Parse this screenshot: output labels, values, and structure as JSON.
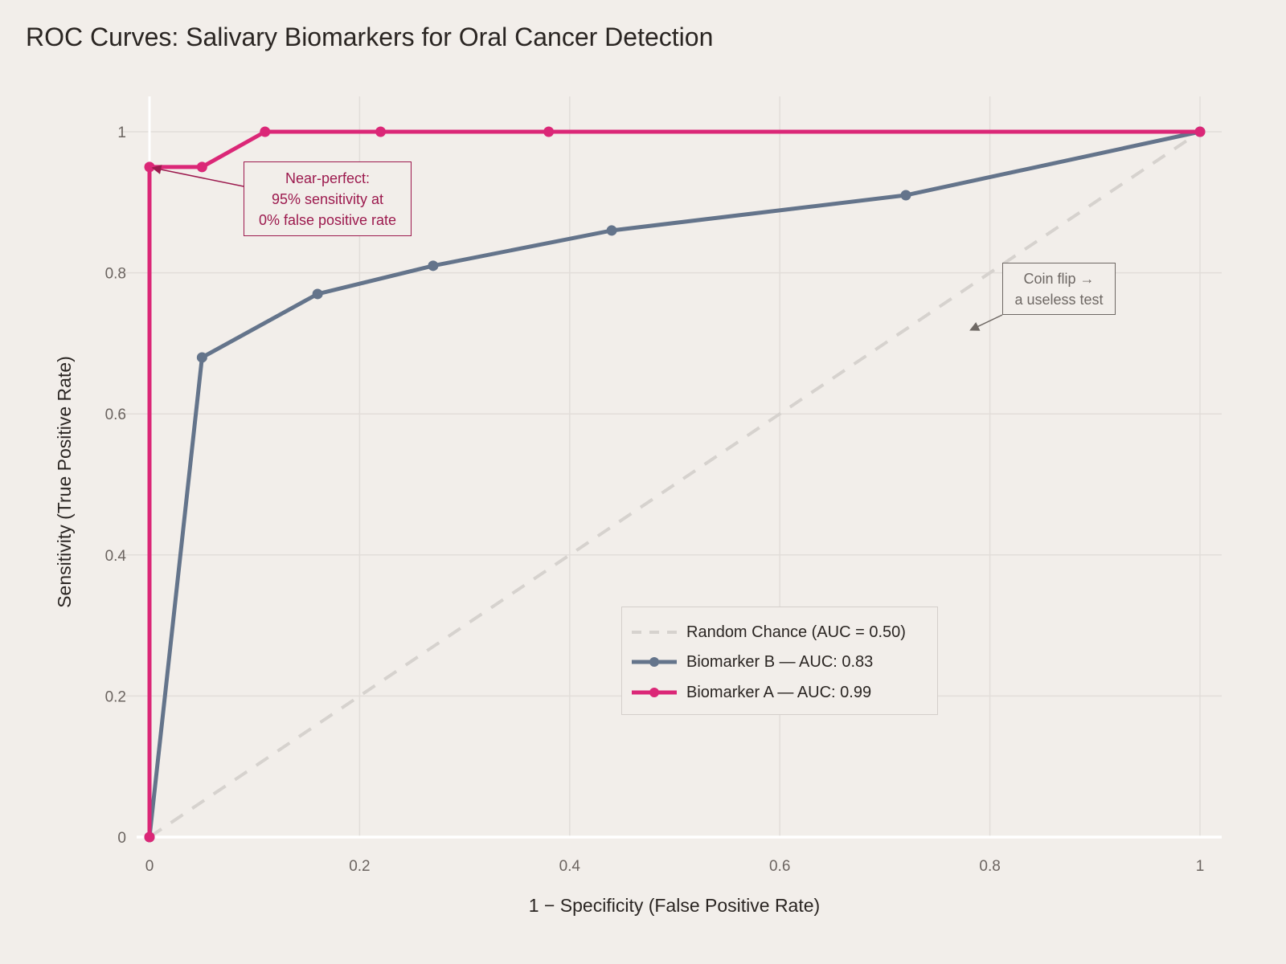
{
  "chart_data": {
    "type": "line",
    "title": "ROC Curves: Salivary Biomarkers for Oral Cancer Detection",
    "xlabel": "1 − Specificity (False Positive Rate)",
    "ylabel": "Sensitivity (True Positive Rate)",
    "xlim": [
      -0.02,
      1.02
    ],
    "ylim": [
      0,
      1.05
    ],
    "x_ticks": [
      "0",
      "0.2",
      "0.4",
      "0.6",
      "0.8",
      "1"
    ],
    "y_ticks": [
      "0",
      "0.2",
      "0.4",
      "0.6",
      "0.8",
      "1"
    ],
    "grid": true,
    "legend_position": "inside lower right",
    "series": [
      {
        "name": "Random Chance (AUC = 0.50)",
        "style": "dashed",
        "color": "#d6d2ce",
        "x": [
          0,
          1
        ],
        "y": [
          0,
          1
        ]
      },
      {
        "name": "Biomarker B — AUC: 0.83",
        "style": "line+markers",
        "color": "#64748b",
        "x": [
          0,
          0.05,
          0.16,
          0.27,
          0.44,
          0.72,
          1
        ],
        "y": [
          0,
          0.68,
          0.77,
          0.81,
          0.86,
          0.91,
          1
        ]
      },
      {
        "name": "Biomarker A — AUC: 0.99",
        "style": "line+markers",
        "color": "#db2777",
        "x": [
          0,
          0,
          0.05,
          0.11,
          0.22,
          0.38,
          1
        ],
        "y": [
          0,
          0.95,
          0.95,
          1,
          1,
          1,
          1
        ]
      }
    ],
    "annotations": [
      {
        "text": [
          "Near-perfect:",
          "95% sensitivity at",
          "0% false positive rate"
        ],
        "points_to": [
          0,
          0.95
        ],
        "color": "#9c1a4e"
      },
      {
        "text": [
          "Coin flip →",
          "a useless test"
        ],
        "points_to": [
          0.78,
          0.72
        ],
        "color": "#6e6864"
      }
    ]
  }
}
